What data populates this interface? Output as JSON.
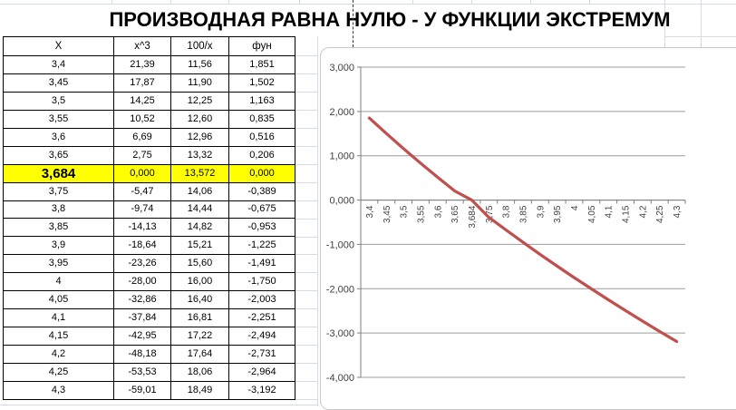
{
  "title": "ПРОИЗВОДНАЯ РАВНА НУЛЮ - У ФУНКЦИИ ЭКСТРЕМУМ",
  "table": {
    "headers": [
      "X",
      "x^3",
      "100/x",
      "фун"
    ],
    "rows": [
      [
        "3,4",
        "21,39",
        "11,56",
        "1,851"
      ],
      [
        "3,45",
        "17,87",
        "11,90",
        "1,502"
      ],
      [
        "3,5",
        "14,25",
        "12,25",
        "1,163"
      ],
      [
        "3,55",
        "10,52",
        "12,60",
        "0,835"
      ],
      [
        "3,6",
        "6,69",
        "12,96",
        "0,516"
      ],
      [
        "3,65",
        "2,75",
        "13,32",
        "0,206"
      ],
      [
        "3,684",
        "0,000",
        "13,572",
        "0,000"
      ],
      [
        "3,75",
        "-5,47",
        "14,06",
        "-0,389"
      ],
      [
        "3,8",
        "-9,74",
        "14,44",
        "-0,675"
      ],
      [
        "3,85",
        "-14,13",
        "14,82",
        "-0,953"
      ],
      [
        "3,9",
        "-18,64",
        "15,21",
        "-1,225"
      ],
      [
        "3,95",
        "-23,26",
        "15,60",
        "-1,491"
      ],
      [
        "4",
        "-28,00",
        "16,00",
        "-1,750"
      ],
      [
        "4,05",
        "-32,86",
        "16,40",
        "-2,003"
      ],
      [
        "4,1",
        "-37,84",
        "16,81",
        "-2,251"
      ],
      [
        "4,15",
        "-42,95",
        "17,22",
        "-2,494"
      ],
      [
        "4,2",
        "-48,18",
        "17,64",
        "-2,731"
      ],
      [
        "4,25",
        "-53,53",
        "18,06",
        "-2,964"
      ],
      [
        "4,3",
        "-59,01",
        "18,49",
        "-3,192"
      ]
    ],
    "highlight_row_index": 6,
    "highlight_color": "#FFFF00"
  },
  "chart_data": {
    "type": "line",
    "title": "",
    "xlabel": "",
    "ylabel": "",
    "x_categories": [
      "3,4",
      "3,45",
      "3,5",
      "3,55",
      "3,6",
      "3,65",
      "3,684",
      "3,75",
      "3,8",
      "3,85",
      "3,9",
      "3,95",
      "4",
      "4,05",
      "4,1",
      "4,15",
      "4,2",
      "4,25",
      "4,3"
    ],
    "series": [
      {
        "name": "фун",
        "values": [
          1.851,
          1.502,
          1.163,
          0.835,
          0.516,
          0.206,
          0.0,
          -0.389,
          -0.675,
          -0.953,
          -1.225,
          -1.491,
          -1.75,
          -2.003,
          -2.251,
          -2.494,
          -2.731,
          -2.964,
          -3.192
        ]
      }
    ],
    "ylim": [
      -4,
      3
    ],
    "yticks": [
      3,
      2,
      1,
      0,
      -1,
      -2,
      -3,
      -4
    ],
    "ytick_labels": [
      "3,000",
      "2,000",
      "1,000",
      "0,000",
      "-1,000",
      "-2,000",
      "-3,000",
      "-4,000"
    ],
    "grid": true,
    "legend": "none",
    "x_labels_rotated": true,
    "line_color": "#C0504D",
    "gridline_color": "#9c9c9c",
    "axis_color": "#7f7f7f",
    "tick_label_color": "#3f3f3f"
  }
}
